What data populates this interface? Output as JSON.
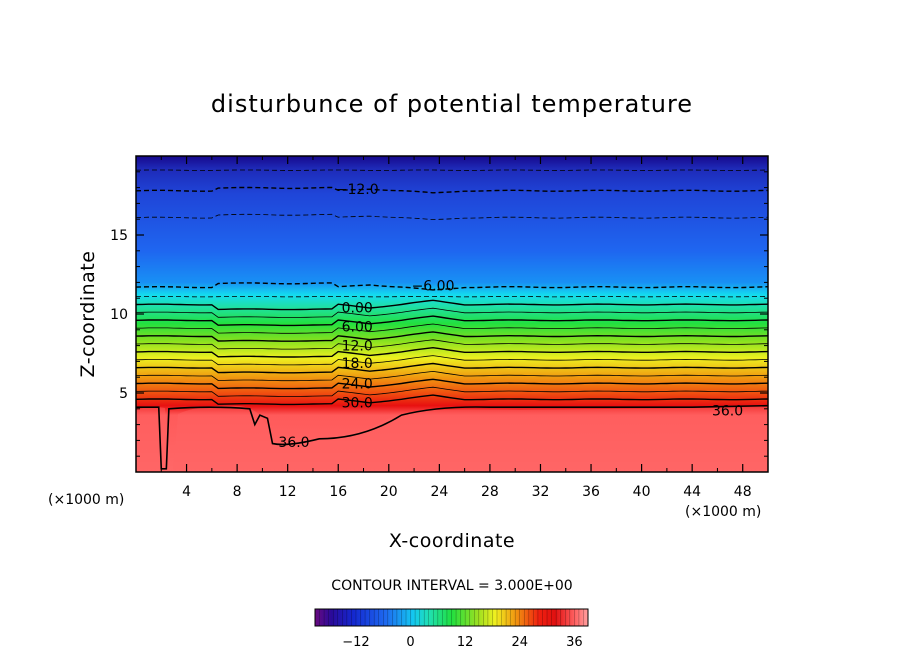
{
  "chart_data": {
    "type": "heatmap",
    "title": "disturbunce of potential temperature",
    "xlabel": "X-coordinate",
    "ylabel": "Z-coordinate",
    "x_unit": "(×1000 m)",
    "y_unit": "(×1000 m)",
    "xlim": [
      0,
      50
    ],
    "ylim": [
      0,
      20
    ],
    "x_ticks": [
      4,
      8,
      12,
      16,
      20,
      24,
      28,
      32,
      36,
      40,
      44,
      48
    ],
    "y_ticks": [
      5,
      10,
      15
    ],
    "contour_interval_text": "CONTOUR INTERVAL =  3.000E+00",
    "contour_interval": 3.0,
    "value_range": [
      -21,
      39
    ],
    "colorbar_ticks": [
      -12,
      0,
      12,
      24,
      36
    ],
    "colorbar_labels": [
      "−12",
      "0",
      "12",
      "24",
      "36"
    ],
    "contour_labels": [
      {
        "text": "−12.0",
        "value": -12,
        "x": 17.5,
        "z": 17.9
      },
      {
        "text": "−6.00",
        "value": -6,
        "x": 23.5,
        "z": 11.8
      },
      {
        "text": "0.00",
        "value": 0,
        "x": 17.5,
        "z": 10.4
      },
      {
        "text": "6.00",
        "value": 6,
        "x": 17.5,
        "z": 9.2
      },
      {
        "text": "12.0",
        "value": 12,
        "x": 17.5,
        "z": 8.0
      },
      {
        "text": "18.0",
        "value": 18,
        "x": 17.5,
        "z": 6.9
      },
      {
        "text": "24.0",
        "value": 24,
        "x": 17.5,
        "z": 5.6
      },
      {
        "text": "30.0",
        "value": 30,
        "x": 17.5,
        "z": 4.4
      },
      {
        "text": "36.0",
        "value": 36,
        "x": 12.5,
        "z": 1.9
      },
      {
        "text": "36.0",
        "value": 36,
        "x": 46.8,
        "z": 3.9
      }
    ],
    "colors": {
      "low": "#16088c",
      "blue": "#1f5af0",
      "cyan": "#14e0f0",
      "green": "#20e050",
      "yellow": "#f0f020",
      "orange": "#f08a10",
      "red": "#e81010",
      "salmon": "#ff6464"
    }
  }
}
